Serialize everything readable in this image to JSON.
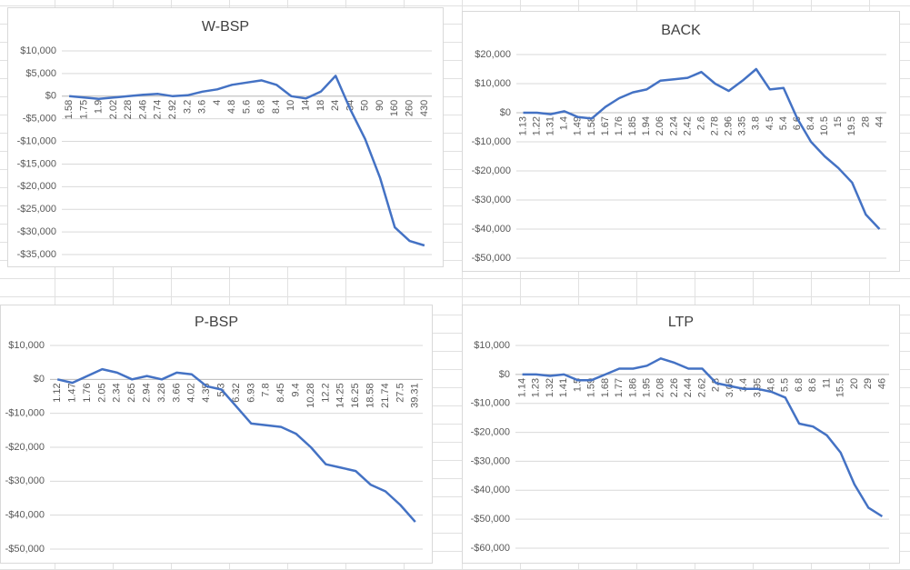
{
  "chart_data": [
    {
      "type": "line",
      "title": "W-BSP",
      "color": "#4472c4",
      "grid": true,
      "categories": [
        "1.58",
        "1.75",
        "1.9",
        "2.02",
        "2.28",
        "2.46",
        "2.74",
        "2.92",
        "3.2",
        "3.6",
        "4",
        "4.8",
        "5.6",
        "6.8",
        "8.4",
        "10",
        "14",
        "18",
        "24",
        "34",
        "50",
        "90",
        "160",
        "260",
        "430"
      ],
      "values": [
        0,
        -300,
        -600,
        -300,
        0,
        300,
        500,
        0,
        200,
        1000,
        1500,
        2500,
        3000,
        3500,
        2500,
        0,
        -500,
        1000,
        4500,
        -3000,
        -9500,
        -18000,
        -29000,
        -32000,
        -33000
      ],
      "ylim": [
        -35000,
        10000
      ],
      "yticks": [
        {
          "value": 10000,
          "label": "$10,000"
        },
        {
          "value": 5000,
          "label": "$5,000"
        },
        {
          "value": 0,
          "label": "$0"
        },
        {
          "value": -5000,
          "label": "-$5,000"
        },
        {
          "value": -10000,
          "label": "-$10,000"
        },
        {
          "value": -15000,
          "label": "-$15,000"
        },
        {
          "value": -20000,
          "label": "-$20,000"
        },
        {
          "value": -25000,
          "label": "-$25,000"
        },
        {
          "value": -30000,
          "label": "-$30,000"
        },
        {
          "value": -35000,
          "label": "-$35,000"
        }
      ]
    },
    {
      "type": "line",
      "title": "BACK",
      "color": "#4472c4",
      "grid": true,
      "categories": [
        "1.13",
        "1.22",
        "1.31",
        "1.4",
        "1.49",
        "1.58",
        "1.67",
        "1.76",
        "1.85",
        "1.94",
        "2.06",
        "2.24",
        "2.42",
        "2.6",
        "2.78",
        "2.96",
        "3.35",
        "3.8",
        "4.5",
        "5.4",
        "6.6",
        "8.4",
        "10.5",
        "15",
        "19.5",
        "28",
        "44"
      ],
      "values": [
        0,
        0,
        -500,
        500,
        -1500,
        -2000,
        2000,
        5000,
        7000,
        8000,
        11000,
        11500,
        12000,
        14000,
        10000,
        7500,
        11000,
        15000,
        8000,
        8500,
        -2000,
        -10000,
        -15000,
        -19000,
        -24000,
        -35000,
        -40000
      ],
      "ylim": [
        -50000,
        20000
      ],
      "yticks": [
        {
          "value": 20000,
          "label": "$20,000"
        },
        {
          "value": 10000,
          "label": "$10,000"
        },
        {
          "value": 0,
          "label": "$0"
        },
        {
          "value": -10000,
          "label": "-$10,000"
        },
        {
          "value": -20000,
          "label": "-$20,000"
        },
        {
          "value": -30000,
          "label": "-$30,000"
        },
        {
          "value": -40000,
          "label": "-$40,000"
        },
        {
          "value": -50000,
          "label": "-$50,000"
        }
      ]
    },
    {
      "type": "line",
      "title": "P-BSP",
      "color": "#4472c4",
      "grid": true,
      "categories": [
        "1.12",
        "1.47",
        "1.76",
        "2.05",
        "2.34",
        "2.65",
        "2.94",
        "3.28",
        "3.66",
        "4.02",
        "4.35",
        "5.3",
        "6.32",
        "6.93",
        "7.8",
        "8.45",
        "9.4",
        "10.28",
        "12.2",
        "14.25",
        "16.25",
        "18.58",
        "21.74",
        "27.5",
        "39.31"
      ],
      "values": [
        0,
        -1000,
        1000,
        3000,
        2000,
        0,
        1000,
        0,
        2000,
        1500,
        -2000,
        -3000,
        -8000,
        -13000,
        -13500,
        -14000,
        -16000,
        -20000,
        -25000,
        -26000,
        -27000,
        -31000,
        -33000,
        -37000,
        -42000
      ],
      "ylim": [
        -50000,
        10000
      ],
      "yticks": [
        {
          "value": 10000,
          "label": "$10,000"
        },
        {
          "value": 0,
          "label": "$0"
        },
        {
          "value": -10000,
          "label": "-$10,000"
        },
        {
          "value": -20000,
          "label": "-$20,000"
        },
        {
          "value": -30000,
          "label": "-$30,000"
        },
        {
          "value": -40000,
          "label": "-$40,000"
        },
        {
          "value": -50000,
          "label": "-$50,000"
        }
      ]
    },
    {
      "type": "line",
      "title": "LTP",
      "color": "#4472c4",
      "grid": true,
      "categories": [
        "1.14",
        "1.23",
        "1.32",
        "1.41",
        "1.5",
        "1.59",
        "1.68",
        "1.77",
        "1.86",
        "1.95",
        "2.08",
        "2.26",
        "2.44",
        "2.62",
        "2.8",
        "3.05",
        "3.4",
        "3.95",
        "4.6",
        "5.5",
        "6.8",
        "8.6",
        "11",
        "15.5",
        "20",
        "29",
        "46"
      ],
      "values": [
        0,
        0,
        -500,
        0,
        -2000,
        -2000,
        0,
        2000,
        2000,
        3000,
        5500,
        4000,
        2000,
        2000,
        -3000,
        -4000,
        -5000,
        -5000,
        -6000,
        -8000,
        -17000,
        -18000,
        -21000,
        -27000,
        -38000,
        -46000,
        -49000
      ],
      "ylim": [
        -60000,
        10000
      ],
      "yticks": [
        {
          "value": 10000,
          "label": "$10,000"
        },
        {
          "value": 0,
          "label": "$0"
        },
        {
          "value": -10000,
          "label": "-$10,000"
        },
        {
          "value": -20000,
          "label": "-$20,000"
        },
        {
          "value": -30000,
          "label": "-$30,000"
        },
        {
          "value": -40000,
          "label": "-$40,000"
        },
        {
          "value": -50000,
          "label": "-$50,000"
        },
        {
          "value": -60000,
          "label": "-$60,000"
        }
      ]
    }
  ]
}
